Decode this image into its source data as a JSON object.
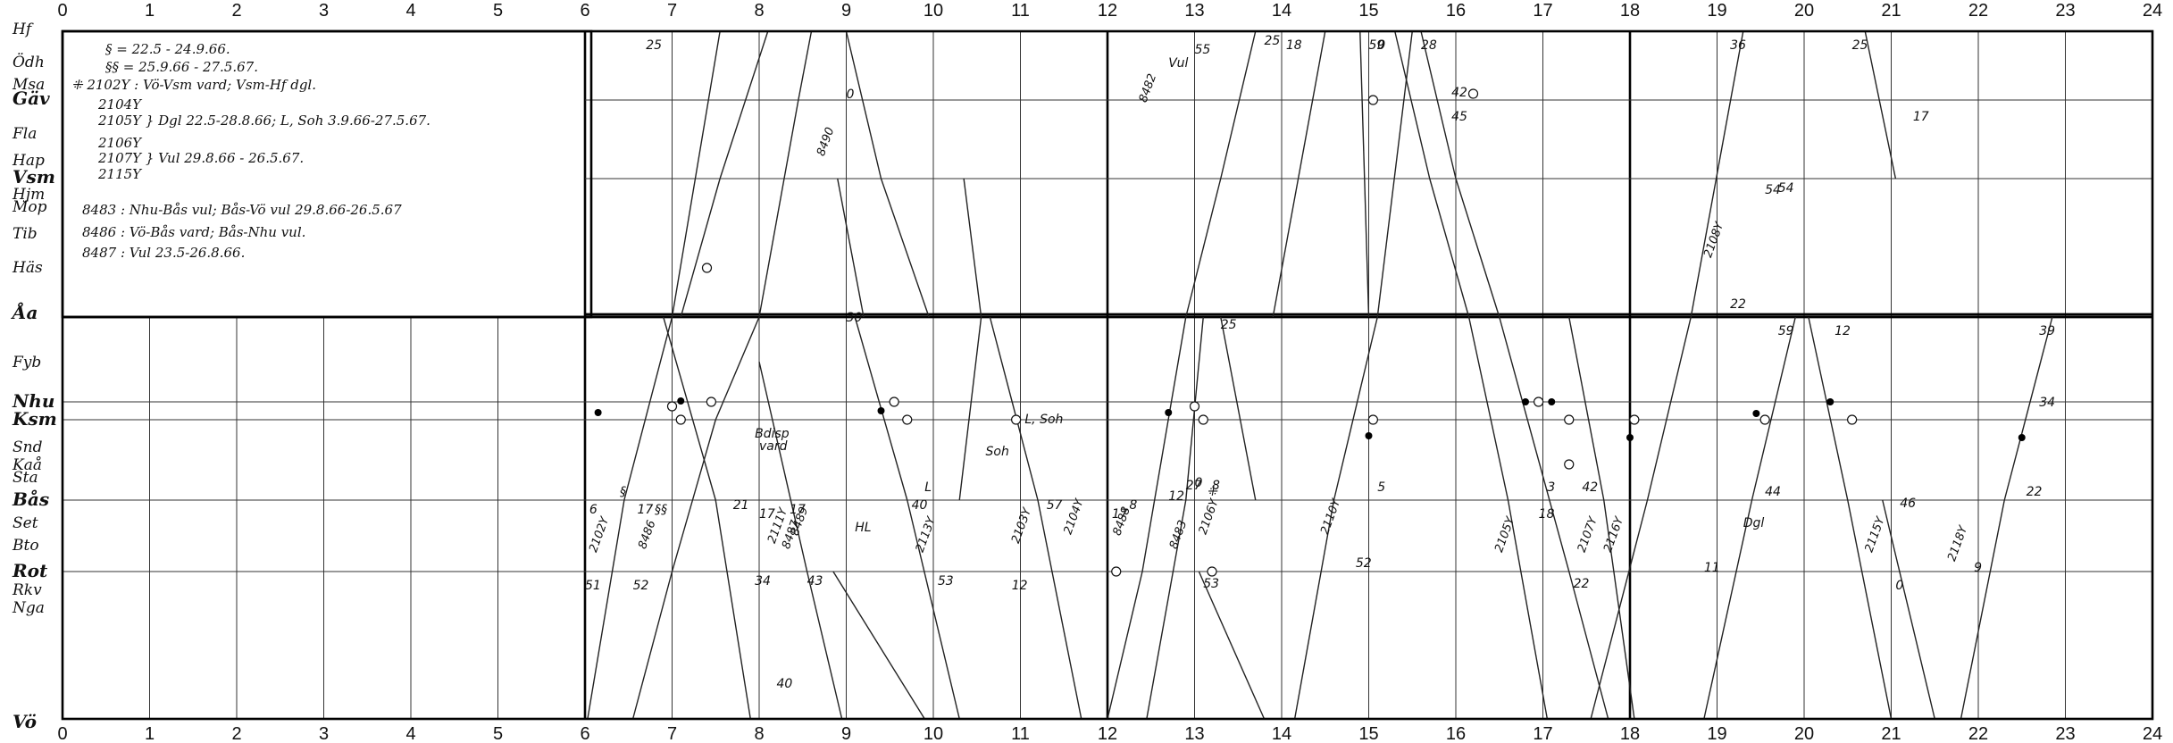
{
  "diagram": {
    "hours": [
      "0",
      "1",
      "2",
      "3",
      "4",
      "5",
      "6",
      "7",
      "8",
      "9",
      "10",
      "11",
      "12",
      "13",
      "14",
      "15",
      "16",
      "17",
      "18",
      "19",
      "20",
      "21",
      "22",
      "23",
      "24"
    ],
    "upper_stations": [
      {
        "code": "Hf",
        "major": false
      },
      {
        "code": "Ödh",
        "major": false
      },
      {
        "code": "Msa",
        "major": false
      },
      {
        "code": "Gäv",
        "major": true
      },
      {
        "code": "Fla",
        "major": false
      },
      {
        "code": "Hap",
        "major": false
      },
      {
        "code": "Vsm",
        "major": true
      },
      {
        "code": "Hjm",
        "major": false
      },
      {
        "code": "Mop",
        "major": false
      },
      {
        "code": "Tib",
        "major": false
      },
      {
        "code": "Häs",
        "major": false
      },
      {
        "code": "Åa",
        "major": true
      }
    ],
    "lower_stations": [
      {
        "code": "Fyb",
        "major": false
      },
      {
        "code": "Nhu",
        "major": true
      },
      {
        "code": "Ksm",
        "major": true
      },
      {
        "code": "Snd",
        "major": false
      },
      {
        "code": "Kaå",
        "major": false
      },
      {
        "code": "Sta",
        "major": false
      },
      {
        "code": "Bås",
        "major": true
      },
      {
        "code": "Set",
        "major": false
      },
      {
        "code": "Bto",
        "major": false
      },
      {
        "code": "Rot",
        "major": true
      },
      {
        "code": "Rkv",
        "major": false
      },
      {
        "code": "Nga",
        "major": false
      },
      {
        "code": "Vö",
        "major": true
      }
    ],
    "legend": [
      "§ = 22.5 - 24.9.66.",
      "§§ = 25.9.66 - 27.5.67.",
      "⁜ 2102Y : Vö-Vsm vard; Vsm-Hf dgl.",
      "2104Y",
      "2105Y } Dgl 22.5-28.8.66; L, Soh 3.9.66-27.5.67.",
      "2106Y",
      "2107Y } Vul 29.8.66 - 26.5.67.",
      "2115Y",
      "8483 : Nhu-Bås vul; Bås-Vö vul 29.8.66-26.5.67",
      "8486 : Vö-Bås vard; Bås-Nhu vul.",
      "8487 : Vul 23.5-26.8.66."
    ],
    "trains": [
      {
        "id": "2102Y",
        "minute_a": "51",
        "minute_b": "6"
      },
      {
        "id": "8486",
        "minute_a": "52",
        "minute_b": "17"
      },
      {
        "id": "2111Y",
        "minute_a": "34",
        "minute_b": "21"
      },
      {
        "id": "8489",
        "minute_a": "43",
        "minute_b": "17"
      },
      {
        "id": "2113Y",
        "minute_a": "53",
        "minute_b": "40"
      },
      {
        "id": "2103Y",
        "minute_a": "12",
        "minute_b": "57"
      },
      {
        "id": "2104Y",
        "minute_a": "17",
        "minute_b": "8"
      },
      {
        "id": "8488",
        "minute_a": "12",
        "minute_b": "27"
      },
      {
        "id": "2106Y",
        "minute_a": "53",
        "minute_b": "8"
      },
      {
        "id": "2110Y",
        "minute_a": "52",
        "minute_b": "5"
      },
      {
        "id": "2105Y",
        "minute_a": "18",
        "minute_b": "3"
      },
      {
        "id": "2107Y",
        "minute_a": "22",
        "minute_b": "42"
      },
      {
        "id": "2116Y",
        "minute_a": "11",
        "minute_b": "44"
      },
      {
        "id": "2115Y",
        "minute_a": "0",
        "minute_b": "46"
      },
      {
        "id": "2118Y",
        "minute_a": "9",
        "minute_b": "22"
      },
      {
        "id": "2108Y",
        "minute_a": "22",
        "minute_b": "54"
      },
      {
        "id": "8482",
        "minute_a": "55",
        "minute_b": "25"
      },
      {
        "id": "8490",
        "minute_a": "0",
        "minute_b": "30"
      },
      {
        "id": "8483",
        "minute_a": "0",
        "minute_b": "25"
      },
      {
        "id": "8487",
        "minute_a": "17",
        "minute_b": "40"
      }
    ],
    "annotations": [
      "Bdisp",
      "vard",
      "L",
      "L, Soh",
      "Soh",
      "HL",
      "Dgl",
      "Vul",
      "§",
      "§§",
      "⁜"
    ],
    "top_right_minutes": [
      "25",
      "18",
      "59",
      "0",
      "28",
      "36",
      "25",
      "45",
      "42",
      "17",
      "54",
      "39",
      "34",
      "59",
      "12"
    ]
  }
}
